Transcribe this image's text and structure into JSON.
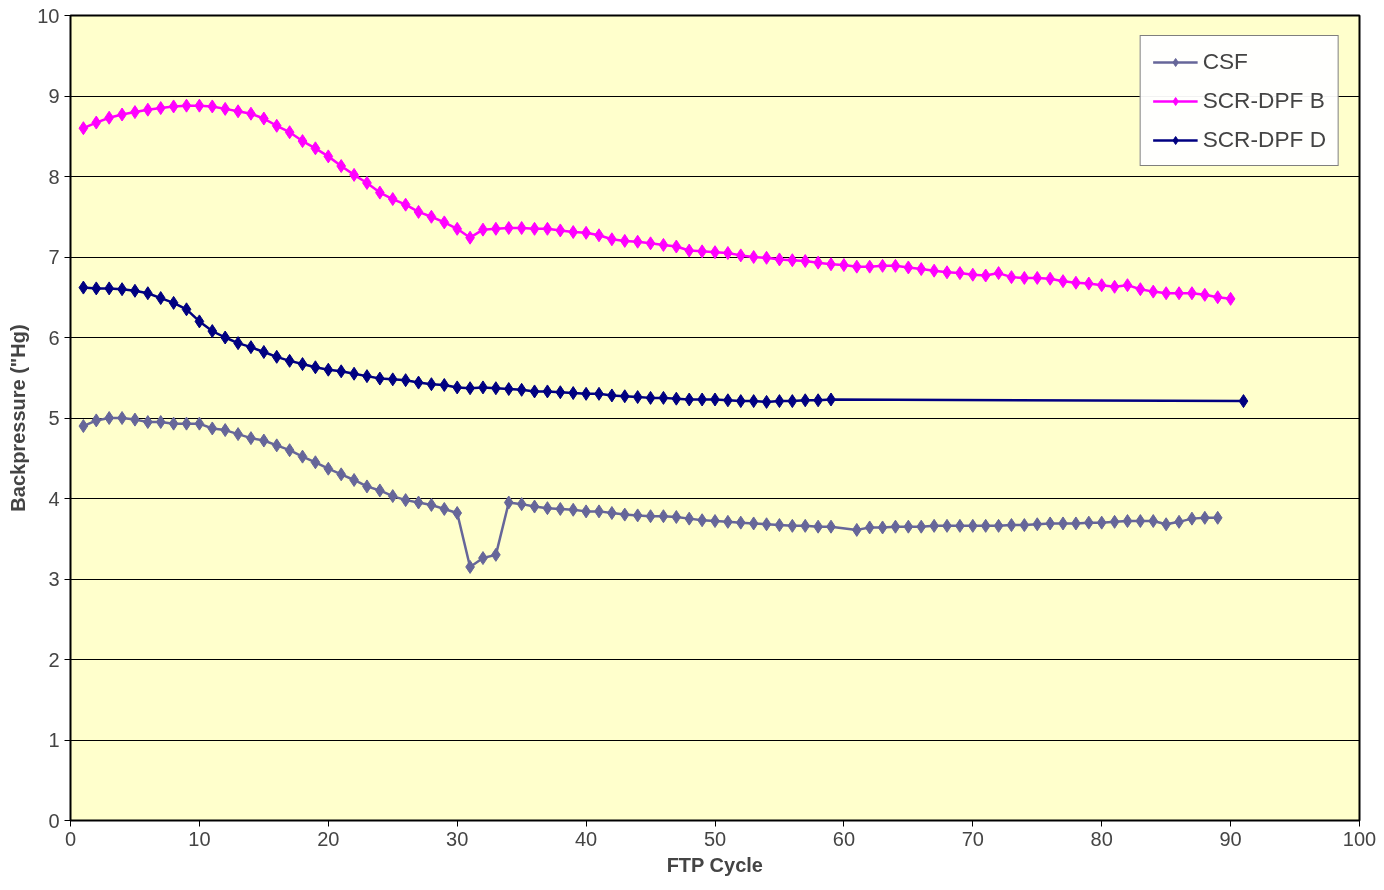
{
  "chart_data": {
    "type": "line",
    "xlabel": "FTP Cycle",
    "ylabel": "Backpressure (\"Hg)",
    "xlim": [
      0,
      100
    ],
    "ylim": [
      0,
      10
    ],
    "xticks": [
      0,
      10,
      20,
      30,
      40,
      50,
      60,
      70,
      80,
      90,
      100
    ],
    "yticks": [
      0,
      1,
      2,
      3,
      4,
      5,
      6,
      7,
      8,
      9,
      10
    ],
    "grid": "y",
    "legend": "top right",
    "marker": "diamond",
    "line_style": "solid",
    "series": [
      {
        "name": "CSF",
        "color": "#666699",
        "x": [
          1,
          2,
          3,
          4,
          5,
          6,
          7,
          8,
          9,
          10,
          11,
          12,
          13,
          14,
          15,
          16,
          17,
          18,
          19,
          20,
          21,
          22,
          23,
          24,
          25,
          26,
          27,
          28,
          29,
          30,
          31,
          32,
          33,
          34,
          35,
          36,
          37,
          38,
          39,
          40,
          41,
          42,
          43,
          44,
          45,
          46,
          47,
          48,
          49,
          50,
          51,
          52,
          53,
          54,
          55,
          56,
          57,
          58,
          59,
          61,
          62,
          63,
          64,
          65,
          66,
          67,
          68,
          69,
          70,
          71,
          72,
          73,
          74,
          75,
          76,
          77,
          78,
          79,
          80,
          81,
          82,
          83,
          84,
          85,
          86,
          87,
          88,
          89
        ],
        "values": [
          4.9,
          4.97,
          5.0,
          5.0,
          4.98,
          4.95,
          4.95,
          4.93,
          4.93,
          4.93,
          4.87,
          4.85,
          4.8,
          4.75,
          4.72,
          4.66,
          4.6,
          4.52,
          4.45,
          4.37,
          4.3,
          4.23,
          4.15,
          4.1,
          4.03,
          3.98,
          3.95,
          3.92,
          3.87,
          3.82,
          3.15,
          3.26,
          3.3,
          3.95,
          3.93,
          3.9,
          3.88,
          3.87,
          3.86,
          3.84,
          3.84,
          3.82,
          3.8,
          3.79,
          3.78,
          3.78,
          3.77,
          3.75,
          3.73,
          3.72,
          3.71,
          3.7,
          3.69,
          3.68,
          3.67,
          3.66,
          3.66,
          3.65,
          3.65,
          3.61,
          3.64,
          3.64,
          3.65,
          3.65,
          3.65,
          3.66,
          3.66,
          3.66,
          3.66,
          3.66,
          3.66,
          3.67,
          3.67,
          3.68,
          3.69,
          3.69,
          3.69,
          3.7,
          3.7,
          3.71,
          3.72,
          3.72,
          3.72,
          3.68,
          3.71,
          3.75,
          3.76,
          3.76
        ]
      },
      {
        "name": "SCR-DPF B",
        "color": "#ff00ff",
        "x": [
          1,
          2,
          3,
          4,
          5,
          6,
          7,
          8,
          9,
          10,
          11,
          12,
          13,
          14,
          15,
          16,
          17,
          18,
          19,
          20,
          21,
          22,
          23,
          24,
          25,
          26,
          27,
          28,
          29,
          30,
          31,
          32,
          33,
          34,
          35,
          36,
          37,
          38,
          39,
          40,
          41,
          42,
          43,
          44,
          45,
          46,
          47,
          48,
          49,
          50,
          51,
          52,
          53,
          54,
          55,
          56,
          57,
          58,
          59,
          60,
          61,
          62,
          63,
          64,
          65,
          66,
          67,
          68,
          69,
          70,
          71,
          72,
          73,
          74,
          75,
          76,
          77,
          78,
          79,
          80,
          81,
          82,
          83,
          84,
          85,
          86,
          87,
          88,
          89,
          90
        ],
        "values": [
          8.6,
          8.67,
          8.73,
          8.77,
          8.8,
          8.83,
          8.85,
          8.87,
          8.88,
          8.88,
          8.87,
          8.84,
          8.81,
          8.78,
          8.72,
          8.63,
          8.55,
          8.44,
          8.35,
          8.25,
          8.13,
          8.02,
          7.92,
          7.8,
          7.72,
          7.65,
          7.56,
          7.5,
          7.43,
          7.35,
          7.24,
          7.34,
          7.35,
          7.36,
          7.36,
          7.35,
          7.35,
          7.33,
          7.31,
          7.3,
          7.27,
          7.22,
          7.2,
          7.19,
          7.17,
          7.15,
          7.13,
          7.08,
          7.07,
          7.06,
          7.05,
          7.02,
          7.0,
          6.99,
          6.97,
          6.96,
          6.95,
          6.93,
          6.91,
          6.9,
          6.88,
          6.88,
          6.89,
          6.89,
          6.87,
          6.85,
          6.83,
          6.81,
          6.8,
          6.78,
          6.77,
          6.8,
          6.75,
          6.74,
          6.74,
          6.73,
          6.7,
          6.68,
          6.67,
          6.65,
          6.63,
          6.65,
          6.6,
          6.57,
          6.55,
          6.55,
          6.55,
          6.53,
          6.5,
          6.48
        ]
      },
      {
        "name": "SCR-DPF D",
        "color": "#000080",
        "x": [
          1,
          2,
          3,
          4,
          5,
          6,
          7,
          8,
          9,
          10,
          11,
          12,
          13,
          14,
          15,
          16,
          17,
          18,
          19,
          20,
          21,
          22,
          23,
          24,
          25,
          26,
          27,
          28,
          29,
          30,
          31,
          32,
          33,
          34,
          35,
          36,
          37,
          38,
          39,
          40,
          41,
          42,
          43,
          44,
          45,
          46,
          47,
          48,
          49,
          50,
          51,
          52,
          53,
          54,
          55,
          56,
          57,
          58,
          59,
          91
        ],
        "values": [
          6.62,
          6.61,
          6.61,
          6.6,
          6.58,
          6.55,
          6.49,
          6.43,
          6.35,
          6.2,
          6.08,
          6.0,
          5.93,
          5.88,
          5.82,
          5.76,
          5.71,
          5.67,
          5.63,
          5.6,
          5.58,
          5.55,
          5.52,
          5.49,
          5.48,
          5.47,
          5.44,
          5.42,
          5.41,
          5.38,
          5.37,
          5.38,
          5.37,
          5.36,
          5.35,
          5.33,
          5.33,
          5.32,
          5.31,
          5.3,
          5.3,
          5.28,
          5.27,
          5.26,
          5.25,
          5.25,
          5.24,
          5.23,
          5.23,
          5.23,
          5.22,
          5.21,
          5.21,
          5.2,
          5.21,
          5.21,
          5.22,
          5.22,
          5.23,
          5.21
        ]
      }
    ]
  }
}
